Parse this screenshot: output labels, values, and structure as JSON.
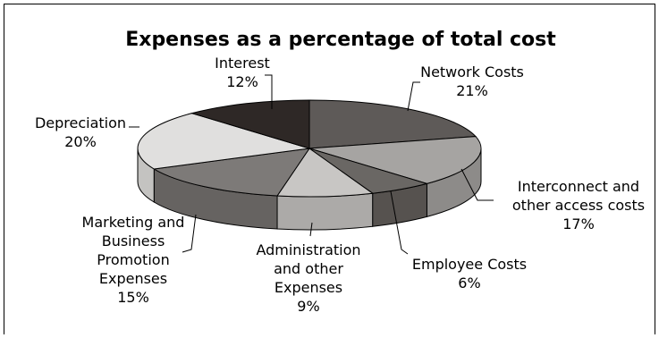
{
  "chart_data": {
    "type": "pie",
    "title": "Expenses as a percentage of total cost",
    "slices": [
      {
        "label": [
          "Network Costs"
        ],
        "pct": "21%",
        "value": 21,
        "top_color": "#5e5a58",
        "side_color": "#4a4644"
      },
      {
        "label": [
          "Interconnect and",
          "other access costs"
        ],
        "pct": "17%",
        "value": 17,
        "top_color": "#a6a4a2",
        "side_color": "#8d8b89"
      },
      {
        "label": [
          "Employee Costs"
        ],
        "pct": "6%",
        "value": 6,
        "top_color": "#6a6764",
        "side_color": "#56524f"
      },
      {
        "label": [
          "Administration",
          "and other",
          "Expenses"
        ],
        "pct": "9%",
        "value": 9,
        "top_color": "#c8c6c4",
        "side_color": "#acaaa8"
      },
      {
        "label": [
          "Marketing and",
          "Business",
          "Promotion",
          "Expenses"
        ],
        "pct": "15%",
        "value": 15,
        "top_color": "#7d7a78",
        "side_color": "#666361"
      },
      {
        "label": [
          "Depreciation"
        ],
        "pct": "20%",
        "value": 20,
        "top_color": "#e0dfde",
        "side_color": "#c4c3c1"
      },
      {
        "label": [
          "Interest"
        ],
        "pct": "12%",
        "value": 12,
        "top_color": "#2e2826",
        "side_color": "#221e1c"
      }
    ]
  }
}
